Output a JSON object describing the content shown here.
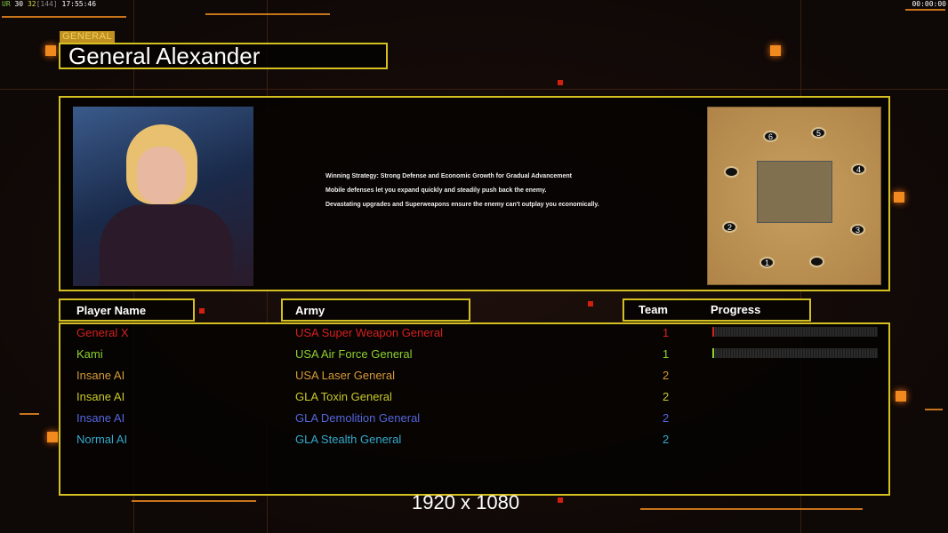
{
  "status_bar": {
    "fps_label": "UR",
    "fps1": "30",
    "fps2": "32",
    "bracket": "[144]",
    "clock": "17:55:46",
    "timer": "00:00:00"
  },
  "header": {
    "tag": "GENERAL",
    "title": "General Alexander"
  },
  "description": [
    "Winning Strategy: Strong Defense and Economic Growth for Gradual Advancement",
    "Mobile defenses let you expand quickly and steadily push back the enemy.",
    "Devastating upgrades and Superweapons ensure the enemy can't outplay you economically."
  ],
  "map": {
    "start_positions": [
      "1",
      "2",
      "3",
      "4",
      "5",
      "6"
    ]
  },
  "columns": {
    "player": "Player Name",
    "army": "Army",
    "team": "Team",
    "progress": "Progress"
  },
  "players": [
    {
      "name": "General X",
      "army": "USA Super Weapon General",
      "team": "1",
      "color": "#d42020",
      "progress": 1
    },
    {
      "name": "Kami",
      "army": "USA Air Force General",
      "team": "1",
      "color": "#8ed12e",
      "progress": 1
    },
    {
      "name": "Insane AI",
      "army": "USA Laser General",
      "team": "2",
      "color": "#d49a3a"
    },
    {
      "name": "Insane AI",
      "army": "GLA Toxin General",
      "team": "2",
      "color": "#c8c82a"
    },
    {
      "name": "Insane AI",
      "army": "GLA Demolition General",
      "team": "2",
      "color": "#5566dd"
    },
    {
      "name": "Normal AI",
      "army": "GLA Stealth General",
      "team": "2",
      "color": "#33aacc"
    }
  ],
  "resolution": "1920 x 1080",
  "colors": {
    "accent": "#d4c020",
    "orange": "#f08a1e"
  }
}
